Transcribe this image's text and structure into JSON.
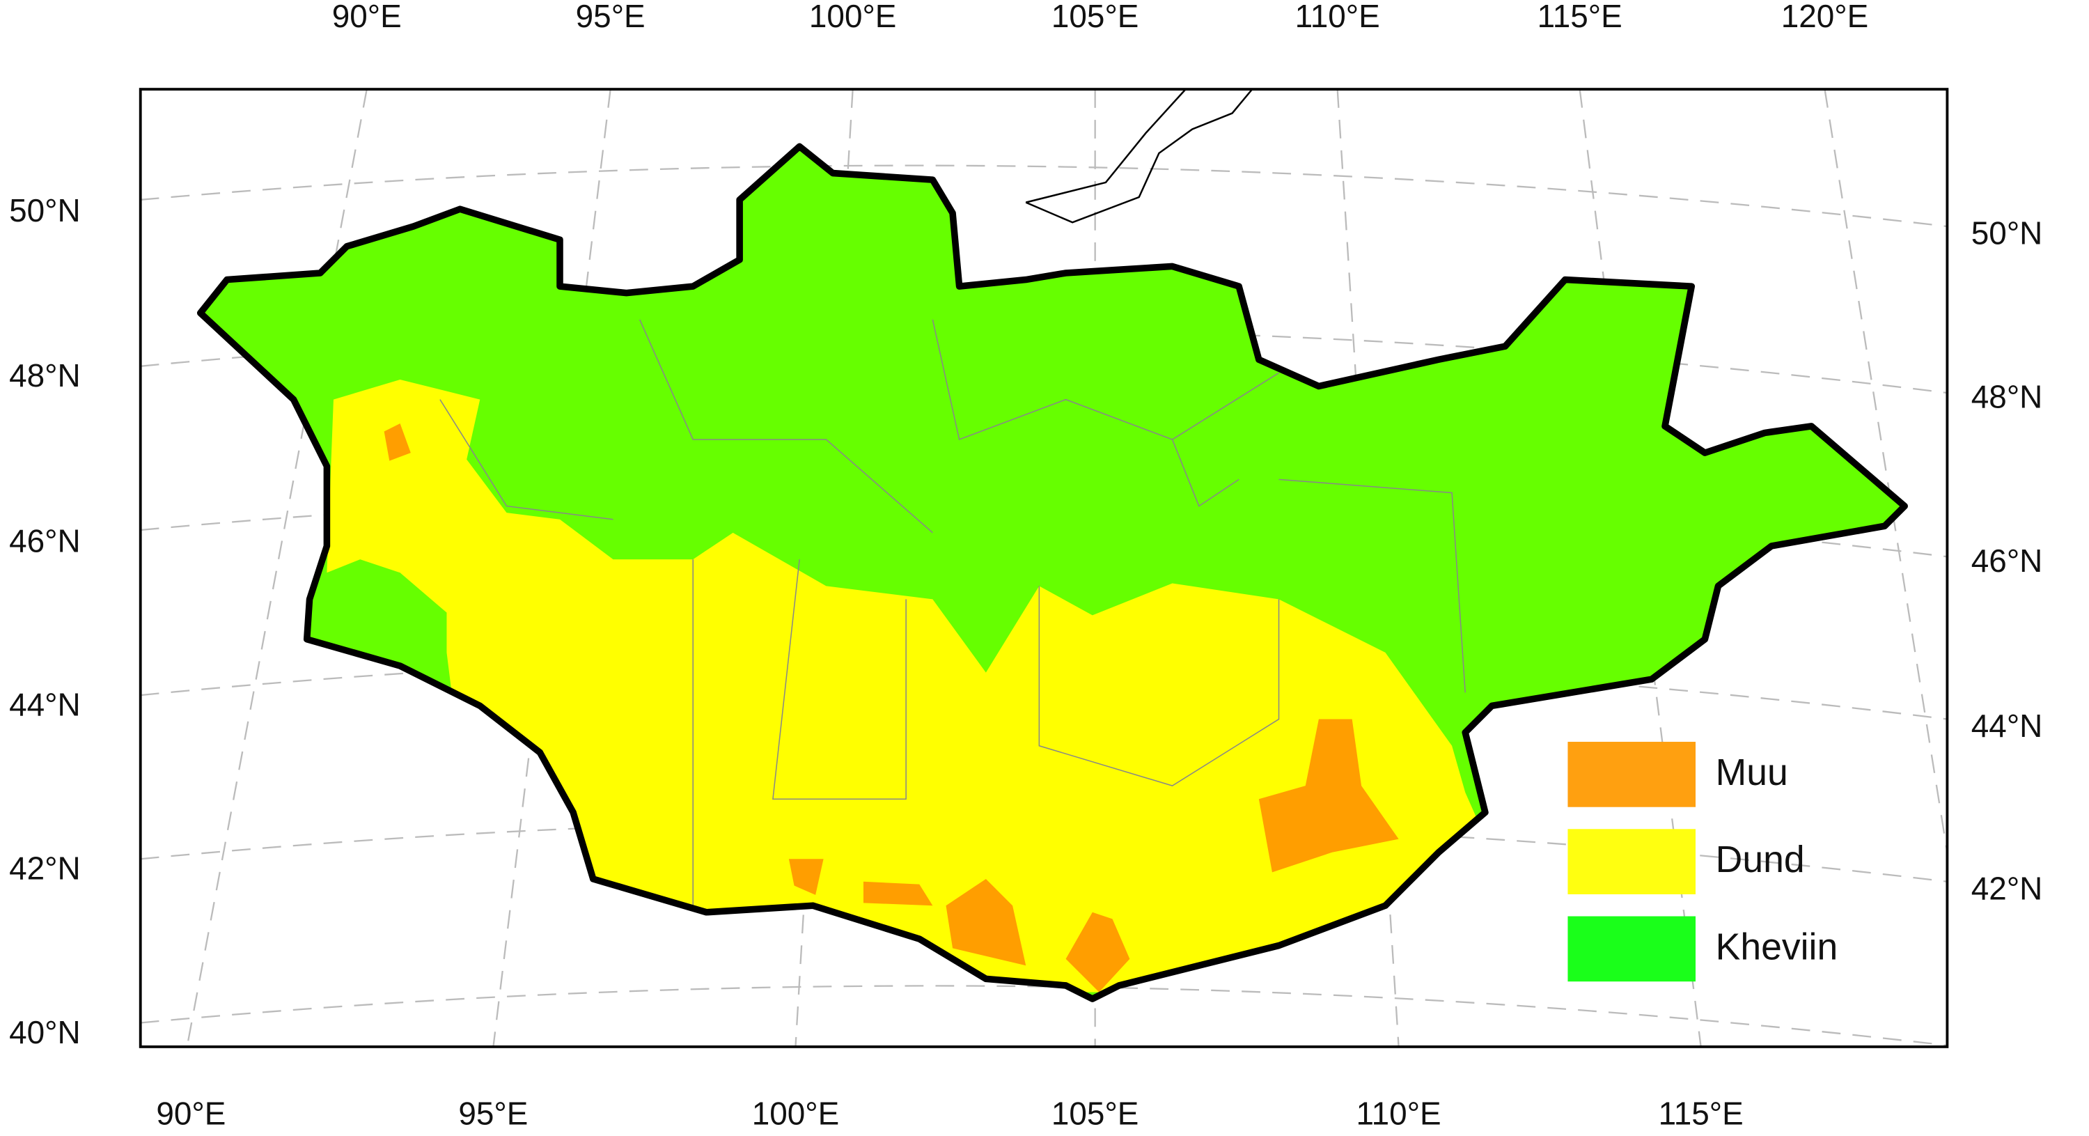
{
  "map": {
    "top_labels": [
      "90°E",
      "95°E",
      "100°E",
      "105°E",
      "110°E",
      "115°E",
      "120°E"
    ],
    "bottom_labels": [
      "90°E",
      "95°E",
      "100°E",
      "105°E",
      "110°E",
      "115°E"
    ],
    "left_labels": [
      "50°N",
      "48°N",
      "46°N",
      "44°N",
      "42°N",
      "40°N"
    ],
    "right_labels": [
      "50°N",
      "48°N",
      "46°N",
      "44°N",
      "42°N"
    ],
    "legend": [
      {
        "label": "Muu",
        "color": "#ffa010"
      },
      {
        "label": "Dund",
        "color": "#ffff10"
      },
      {
        "label": "Kheviin",
        "color": "#1aff1a"
      }
    ]
  }
}
